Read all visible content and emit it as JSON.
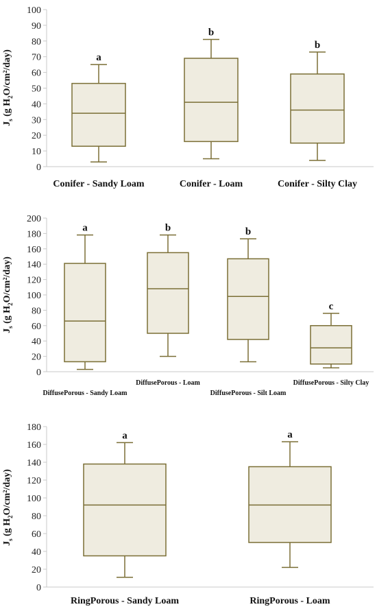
{
  "colors": {
    "box_fill": "#efece0",
    "box_stroke": "#7a6e35",
    "axis": "#c8c8c8"
  },
  "chart_data": [
    {
      "type": "box",
      "ylim": [
        0,
        100
      ],
      "yticks": [
        0,
        10,
        20,
        30,
        40,
        50,
        60,
        70,
        80,
        90,
        100
      ],
      "ylabel": {
        "main": "J",
        "sub_s": "s",
        "rest": " (g H",
        "sub_2": "2",
        "tail": "O/cm²/day)"
      },
      "categories": [
        "Conifer - Sandy Loam",
        "Conifer - Loam",
        "Conifer - Silty Clay"
      ],
      "boxes": [
        {
          "min": 3,
          "q1": 13,
          "median": 34,
          "q3": 53,
          "max": 65,
          "letter": "a"
        },
        {
          "min": 5,
          "q1": 16,
          "median": 41,
          "q3": 69,
          "max": 81,
          "letter": "b"
        },
        {
          "min": 4,
          "q1": 15,
          "median": 36,
          "q3": 59,
          "max": 73,
          "letter": "b"
        }
      ]
    },
    {
      "type": "box",
      "ylim": [
        0,
        200
      ],
      "yticks": [
        0,
        20,
        40,
        60,
        80,
        100,
        120,
        140,
        160,
        180,
        200
      ],
      "ylabel": {
        "main": "J",
        "sub_s": "s",
        "rest": " (g H",
        "sub_2": "2",
        "tail": "O/cm²/day)"
      },
      "categories": [
        "DiffusePorous - Sandy Loam",
        "DiffusePorous - Loam",
        "DiffusePorous - Silt Loam",
        "DiffusePorous - Silty Clay"
      ],
      "boxes": [
        {
          "min": 3,
          "q1": 13,
          "median": 66,
          "q3": 141,
          "max": 178,
          "letter": "a"
        },
        {
          "min": 20,
          "q1": 50,
          "median": 108,
          "q3": 155,
          "max": 178,
          "letter": "b"
        },
        {
          "min": 13,
          "q1": 42,
          "median": 98,
          "q3": 147,
          "max": 173,
          "letter": "b"
        },
        {
          "min": 5,
          "q1": 10,
          "median": 31,
          "q3": 60,
          "max": 76,
          "letter": "c"
        }
      ]
    },
    {
      "type": "box",
      "ylim": [
        0,
        180
      ],
      "yticks": [
        0,
        20,
        40,
        60,
        80,
        100,
        120,
        140,
        160,
        180
      ],
      "ylabel": {
        "main": "J",
        "sub_s": "s",
        "rest": " (g H",
        "sub_2": "2",
        "tail": "O/cm²/day)"
      },
      "categories": [
        "RingPorous - Sandy Loam",
        "RingPorous - Loam"
      ],
      "boxes": [
        {
          "min": 11,
          "q1": 35,
          "median": 92,
          "q3": 138,
          "max": 162,
          "letter": "a"
        },
        {
          "min": 22,
          "q1": 50,
          "median": 92,
          "q3": 135,
          "max": 163,
          "letter": "a"
        }
      ]
    }
  ]
}
